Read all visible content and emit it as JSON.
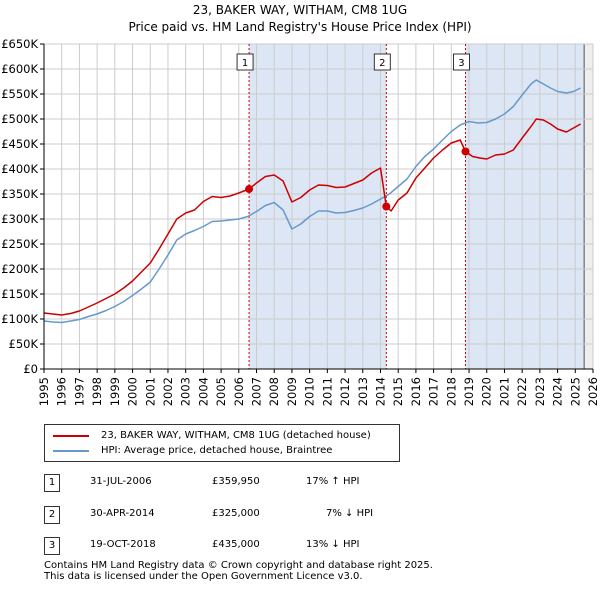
{
  "chart_data": {
    "type": "line",
    "title": "23, BAKER WAY, WITHAM, CM8 1UG",
    "subtitle": "Price paid vs. HM Land Registry's House Price Index (HPI)",
    "xlabel": "",
    "ylabel": "",
    "xlim": [
      1995,
      2026
    ],
    "ylim": [
      0,
      650000
    ],
    "x_ticks": [
      "1995",
      "1996",
      "1997",
      "1998",
      "1999",
      "2000",
      "2001",
      "2002",
      "2003",
      "2004",
      "2005",
      "2006",
      "2007",
      "2008",
      "2009",
      "2010",
      "2011",
      "2012",
      "2013",
      "2014",
      "2015",
      "2016",
      "2017",
      "2018",
      "2019",
      "2020",
      "2021",
      "2022",
      "2023",
      "2024",
      "2025",
      "2026"
    ],
    "y_ticks": [
      {
        "value": 0,
        "label": "£0"
      },
      {
        "value": 50000,
        "label": "£50K"
      },
      {
        "value": 100000,
        "label": "£100K"
      },
      {
        "value": 150000,
        "label": "£150K"
      },
      {
        "value": 200000,
        "label": "£200K"
      },
      {
        "value": 250000,
        "label": "£250K"
      },
      {
        "value": 300000,
        "label": "£300K"
      },
      {
        "value": 350000,
        "label": "£350K"
      },
      {
        "value": 400000,
        "label": "£400K"
      },
      {
        "value": 450000,
        "label": "£450K"
      },
      {
        "value": 500000,
        "label": "£500K"
      },
      {
        "value": 550000,
        "label": "£550K"
      },
      {
        "value": 600000,
        "label": "£600K"
      },
      {
        "value": 650000,
        "label": "£650K"
      }
    ],
    "grid": true,
    "series": [
      {
        "name": "23, BAKER WAY, WITHAM, CM8 1UG (detached house)",
        "color": "#cc0000",
        "points": [
          [
            1995.0,
            112000
          ],
          [
            1995.5,
            110000
          ],
          [
            1996.0,
            108000
          ],
          [
            1996.5,
            111000
          ],
          [
            1997.0,
            116000
          ],
          [
            1997.5,
            124000
          ],
          [
            1998.0,
            132000
          ],
          [
            1998.5,
            141000
          ],
          [
            1999.0,
            150000
          ],
          [
            1999.5,
            162000
          ],
          [
            2000.0,
            176000
          ],
          [
            2000.5,
            194000
          ],
          [
            2001.0,
            212000
          ],
          [
            2001.5,
            240000
          ],
          [
            2002.0,
            270000
          ],
          [
            2002.5,
            300000
          ],
          [
            2003.0,
            312000
          ],
          [
            2003.5,
            318000
          ],
          [
            2004.0,
            335000
          ],
          [
            2004.5,
            345000
          ],
          [
            2005.0,
            343000
          ],
          [
            2005.5,
            346000
          ],
          [
            2006.0,
            352000
          ],
          [
            2006.58,
            359950
          ],
          [
            2007.0,
            372000
          ],
          [
            2007.5,
            385000
          ],
          [
            2008.0,
            388000
          ],
          [
            2008.5,
            376000
          ],
          [
            2009.0,
            334000
          ],
          [
            2009.5,
            343000
          ],
          [
            2010.0,
            358000
          ],
          [
            2010.5,
            368000
          ],
          [
            2011.0,
            367000
          ],
          [
            2011.5,
            363000
          ],
          [
            2012.0,
            364000
          ],
          [
            2012.5,
            371000
          ],
          [
            2013.0,
            378000
          ],
          [
            2013.5,
            392000
          ],
          [
            2014.0,
            402000
          ],
          [
            2014.33,
            325000
          ],
          [
            2014.6,
            316000
          ],
          [
            2015.0,
            338000
          ],
          [
            2015.5,
            352000
          ],
          [
            2016.0,
            382000
          ],
          [
            2016.5,
            402000
          ],
          [
            2017.0,
            422000
          ],
          [
            2017.5,
            438000
          ],
          [
            2018.0,
            452000
          ],
          [
            2018.5,
            458000
          ],
          [
            2018.8,
            435000
          ],
          [
            2019.2,
            425000
          ],
          [
            2019.6,
            422000
          ],
          [
            2020.0,
            420000
          ],
          [
            2020.5,
            428000
          ],
          [
            2021.0,
            430000
          ],
          [
            2021.5,
            438000
          ],
          [
            2022.0,
            462000
          ],
          [
            2022.5,
            485000
          ],
          [
            2022.8,
            500000
          ],
          [
            2023.2,
            498000
          ],
          [
            2023.6,
            490000
          ],
          [
            2024.0,
            480000
          ],
          [
            2024.5,
            474000
          ],
          [
            2024.9,
            482000
          ],
          [
            2025.3,
            490000
          ]
        ]
      },
      {
        "name": "HPI: Average price, detached house, Braintree",
        "color": "#6699cc",
        "points": [
          [
            1995.0,
            96000
          ],
          [
            1995.5,
            94000
          ],
          [
            1996.0,
            93000
          ],
          [
            1996.5,
            96000
          ],
          [
            1997.0,
            99000
          ],
          [
            1997.5,
            105000
          ],
          [
            1998.0,
            110000
          ],
          [
            1998.5,
            117000
          ],
          [
            1999.0,
            125000
          ],
          [
            1999.5,
            135000
          ],
          [
            2000.0,
            147000
          ],
          [
            2000.5,
            160000
          ],
          [
            2001.0,
            174000
          ],
          [
            2001.5,
            200000
          ],
          [
            2002.0,
            228000
          ],
          [
            2002.5,
            258000
          ],
          [
            2003.0,
            270000
          ],
          [
            2003.5,
            277000
          ],
          [
            2004.0,
            285000
          ],
          [
            2004.5,
            295000
          ],
          [
            2005.0,
            296000
          ],
          [
            2005.5,
            298000
          ],
          [
            2006.0,
            300000
          ],
          [
            2006.5,
            305000
          ],
          [
            2007.0,
            315000
          ],
          [
            2007.5,
            327000
          ],
          [
            2008.0,
            333000
          ],
          [
            2008.5,
            318000
          ],
          [
            2009.0,
            280000
          ],
          [
            2009.5,
            290000
          ],
          [
            2010.0,
            305000
          ],
          [
            2010.5,
            316000
          ],
          [
            2011.0,
            316000
          ],
          [
            2011.5,
            312000
          ],
          [
            2012.0,
            313000
          ],
          [
            2012.5,
            317000
          ],
          [
            2013.0,
            322000
          ],
          [
            2013.5,
            330000
          ],
          [
            2014.0,
            340000
          ],
          [
            2014.5,
            350000
          ],
          [
            2015.0,
            365000
          ],
          [
            2015.5,
            380000
          ],
          [
            2016.0,
            405000
          ],
          [
            2016.5,
            425000
          ],
          [
            2017.0,
            440000
          ],
          [
            2017.5,
            458000
          ],
          [
            2018.0,
            475000
          ],
          [
            2018.5,
            488000
          ],
          [
            2019.0,
            495000
          ],
          [
            2019.5,
            492000
          ],
          [
            2020.0,
            493000
          ],
          [
            2020.5,
            500000
          ],
          [
            2021.0,
            510000
          ],
          [
            2021.5,
            525000
          ],
          [
            2022.0,
            548000
          ],
          [
            2022.5,
            570000
          ],
          [
            2022.8,
            578000
          ],
          [
            2023.2,
            570000
          ],
          [
            2023.6,
            562000
          ],
          [
            2024.0,
            555000
          ],
          [
            2024.5,
            552000
          ],
          [
            2024.9,
            555000
          ],
          [
            2025.3,
            562000
          ]
        ]
      }
    ],
    "annotations": [
      {
        "label": "1",
        "x": 2006.58,
        "y": 359950
      },
      {
        "label": "2",
        "x": 2014.33,
        "y": 325000
      },
      {
        "label": "3",
        "x": 2018.8,
        "y": 435000
      }
    ],
    "projection_start": 2025.5
  },
  "legend": {
    "items": [
      {
        "label": "23, BAKER WAY, WITHAM, CM8 1UG (detached house)",
        "color": "#cc0000"
      },
      {
        "label": "HPI: Average price, detached house, Braintree",
        "color": "#6699cc"
      }
    ]
  },
  "sales": [
    {
      "num": "1",
      "date": "31-JUL-2006",
      "price": "£359,950",
      "hpi": "17% ↑ HPI"
    },
    {
      "num": "2",
      "date": "30-APR-2014",
      "price": "£325,000",
      "hpi": "7% ↓ HPI"
    },
    {
      "num": "3",
      "date": "19-OCT-2018",
      "price": "£435,000",
      "hpi": "13% ↓ HPI"
    }
  ],
  "footer": {
    "line1": "Contains HM Land Registry data © Crown copyright and database right 2025.",
    "line2": "This data is licensed under the Open Government Licence v3.0."
  },
  "colors": {
    "shade": "#dde6f5",
    "grid": "#cccccc",
    "annot_line": "#cc0000"
  }
}
